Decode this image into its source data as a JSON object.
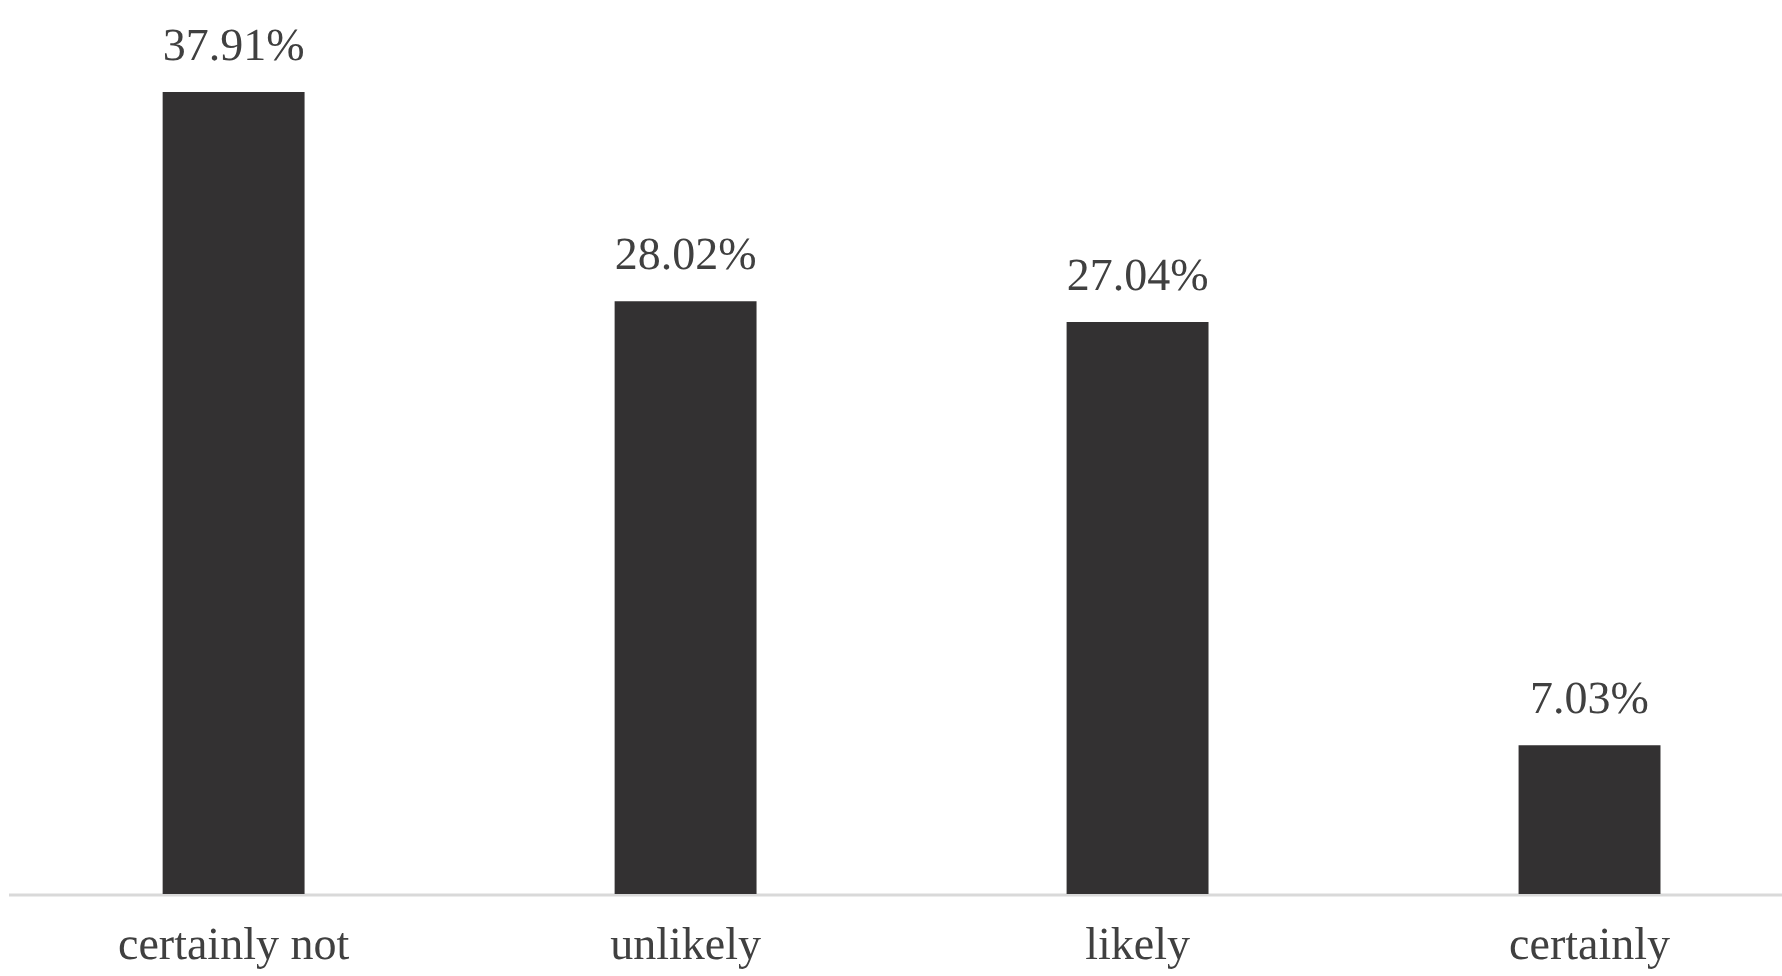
{
  "chart_data": {
    "type": "bar",
    "categories": [
      "certainly not",
      "unlikely",
      "likely",
      "certainly"
    ],
    "values": [
      37.91,
      28.02,
      27.04,
      7.03
    ],
    "value_labels": [
      "37.91%",
      "28.02%",
      "27.04%",
      "7.03%"
    ],
    "color": "#333132"
  }
}
